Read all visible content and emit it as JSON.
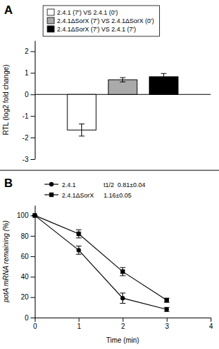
{
  "chart_data": [
    {
      "type": "bar",
      "title": "A",
      "ylabel": "RTL (log2 fold change)",
      "categories": [
        null
      ],
      "series": [
        {
          "name": "2.4.1 (7') VS 2.4.1 (0')",
          "color": "#ffffff",
          "values": [
            -1.65
          ],
          "errors": [
            0.28
          ]
        },
        {
          "name": "2.4.1ΔSorX (7') VS 2.4.1ΔSorX (0')",
          "color": "#aaaaaa",
          "values": [
            0.68
          ],
          "errors": [
            0.1
          ]
        },
        {
          "name": "2.4.1ΔSorX (7') VS 2.4.1 (7')",
          "color": "#000000",
          "values": [
            0.82
          ],
          "errors": [
            0.15
          ]
        }
      ],
      "ylim": [
        -3,
        2.5
      ],
      "yticks": [
        -3,
        -2,
        -1,
        0,
        1,
        2
      ],
      "legend": "upper left",
      "tick_labels": "y",
      "grid": false
    },
    {
      "type": "line",
      "title": "B",
      "xlabel": "Time (min)",
      "ylabel": "potA mRNA remaining (%)",
      "x": [
        0,
        1,
        2,
        3
      ],
      "series": [
        {
          "name": "2.4.1",
          "color": "#000000",
          "marker": "circle",
          "line_style": "solid",
          "values": [
            100,
            66,
            19,
            8
          ],
          "errors": [
            0,
            4,
            5,
            2
          ]
        },
        {
          "name": "2.4.1ΔSorX",
          "color": "#000000",
          "marker": "square",
          "line_style": "solid",
          "values": [
            100,
            82,
            45,
            17
          ],
          "errors": [
            0,
            4,
            4,
            2
          ]
        }
      ],
      "xlim": [
        0,
        4
      ],
      "ylim": [
        0,
        110
      ],
      "xticks": [
        0,
        1,
        2,
        3,
        4
      ],
      "yticks": [
        0,
        20,
        40,
        60,
        80,
        100
      ],
      "legend": "upper left",
      "grid": false,
      "annotations": [
        "t1/2  0.81±0.04",
        "1.16±0.05"
      ]
    }
  ]
}
